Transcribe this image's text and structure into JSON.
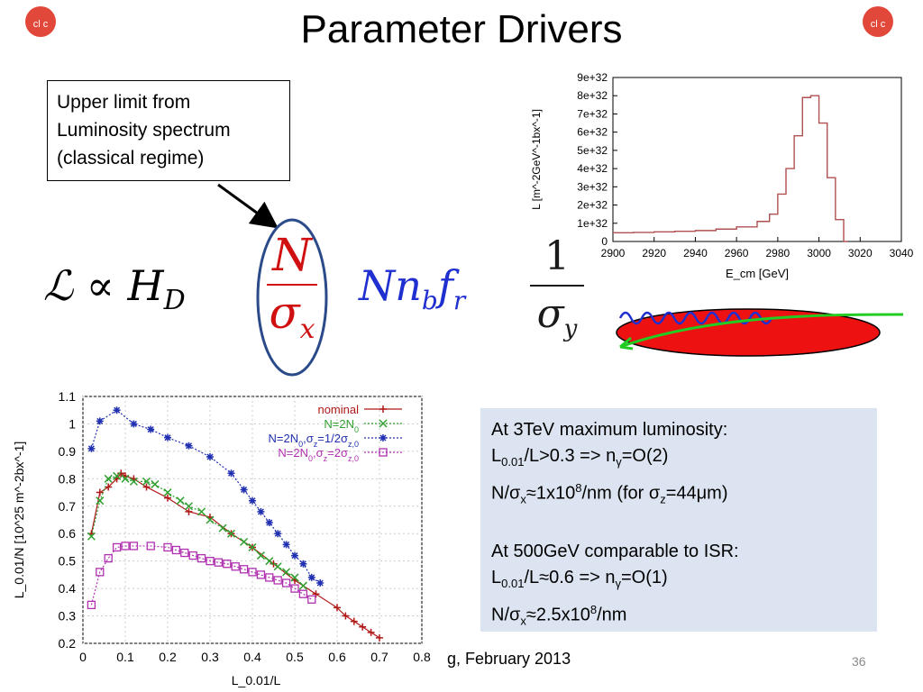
{
  "title": "Parameter Drivers",
  "callout": {
    "lines": [
      "Upper limit from",
      "Luminosity spectrum",
      "(classical regime)"
    ]
  },
  "formula": {
    "lhs": "ℒ ∝ H",
    "lhs_sub": "D",
    "N": "N",
    "sigma": "σ",
    "sigma_sub": "x",
    "mid": "Nn",
    "mid_sub_b": "b",
    "f": "f",
    "f_sub": "r",
    "one": "1",
    "sigma_y": "σ",
    "sigma_y_sub": "y"
  },
  "info": {
    "line1": "At 3TeV maximum luminosity:",
    "line2_a": "L",
    "line2_sub": "0.01",
    "line2_b": "/L>0.3 => n",
    "line2_sub2": "γ",
    "line2_c": "=O(2)",
    "line3_a": "N/σ",
    "line3_sub": "x",
    "line3_b": "≈1x10",
    "line3_sup": "8",
    "line3_c": "/nm (for σ",
    "line3_sub2": "z",
    "line3_d": "=44μm)",
    "line4": "At 500GeV comparable to ISR:",
    "line5_a": "L",
    "line5_sub": "0.01",
    "line5_b": "/L≈0.6 => n",
    "line5_sub2": "γ",
    "line5_c": "=O(1)",
    "line6_a": "N/σ",
    "line6_sub": "x",
    "line6_b": "≈2.5x10",
    "line6_sup": "8",
    "line6_c": "/nm"
  },
  "footer": "g, February 2013",
  "page_number": "36",
  "logo_text": "cl c",
  "chart_data": [
    {
      "type": "line",
      "xlabel": "E_cm [GeV]",
      "ylabel": "L [m^-2GeV^-1bx^-1]",
      "x_ticks": [
        "2900",
        "2920",
        "2940",
        "2960",
        "2980",
        "3000",
        "3020",
        "3040"
      ],
      "y_ticks": [
        "0",
        "1e+32",
        "2e+32",
        "3e+32",
        "4e+32",
        "5e+32",
        "6e+32",
        "7e+32",
        "8e+32",
        "9e+32"
      ],
      "xlim": [
        2900,
        3040
      ],
      "ylim": [
        0,
        9e+32
      ],
      "style": "step",
      "color": "#b05050",
      "x": [
        2900,
        2910,
        2920,
        2930,
        2940,
        2950,
        2960,
        2970,
        2976,
        2980,
        2984,
        2988,
        2992,
        2996,
        3000,
        3004,
        3008,
        3012,
        3014
      ],
      "y": [
        4.8e+31,
        5e+31,
        5.3e+31,
        5.6e+31,
        6e+31,
        6.8e+31,
        8e+31,
        1.1e+32,
        1.5e+32,
        2.6e+32,
        4e+32,
        5.8e+32,
        7.9e+32,
        8e+32,
        6.5e+32,
        3.5e+32,
        1.2e+32,
        0,
        0
      ]
    },
    {
      "type": "line",
      "xlabel": "L_0.01/L",
      "ylabel": "L_0.01/N [10^25 m^-2bx^-1]",
      "x_ticks": [
        "0",
        "0.1",
        "0.2",
        "0.3",
        "0.4",
        "0.5",
        "0.6",
        "0.7",
        "0.8"
      ],
      "y_ticks": [
        "0.2",
        "0.3",
        "0.4",
        "0.5",
        "0.6",
        "0.7",
        "0.8",
        "0.9",
        "1",
        "1.1"
      ],
      "xlim": [
        0,
        0.8
      ],
      "ylim": [
        0.2,
        1.1
      ],
      "legend_position": "top-right",
      "series": [
        {
          "name": "nominal",
          "label": "nominal",
          "color": "#b01818",
          "marker": "plus",
          "x": [
            0.02,
            0.04,
            0.06,
            0.08,
            0.09,
            0.1,
            0.12,
            0.15,
            0.2,
            0.25,
            0.3,
            0.35,
            0.4,
            0.45,
            0.5,
            0.55,
            0.6,
            0.62,
            0.64,
            0.66,
            0.68,
            0.7
          ],
          "y": [
            0.6,
            0.75,
            0.77,
            0.8,
            0.82,
            0.81,
            0.8,
            0.77,
            0.73,
            0.68,
            0.66,
            0.6,
            0.55,
            0.49,
            0.43,
            0.38,
            0.33,
            0.3,
            0.28,
            0.26,
            0.24,
            0.22
          ]
        },
        {
          "name": "N=2N0",
          "label": "N=2N",
          "label_sub": "0",
          "color": "#30a030",
          "marker": "x",
          "x": [
            0.02,
            0.04,
            0.06,
            0.08,
            0.1,
            0.12,
            0.15,
            0.17,
            0.2,
            0.23,
            0.25,
            0.28,
            0.3,
            0.33,
            0.35,
            0.38,
            0.4,
            0.42,
            0.44,
            0.46,
            0.48,
            0.5,
            0.52
          ],
          "y": [
            0.59,
            0.72,
            0.8,
            0.81,
            0.8,
            0.79,
            0.79,
            0.78,
            0.75,
            0.72,
            0.7,
            0.68,
            0.65,
            0.62,
            0.6,
            0.57,
            0.55,
            0.52,
            0.5,
            0.48,
            0.46,
            0.44,
            0.41
          ]
        },
        {
          "name": "N=2N0,σz=1/2σz,0",
          "label": "N=2N",
          "label_sub": "0",
          "label_mid": ",σ",
          "label_sub2": "z",
          "label_end": "=1/2σ",
          "label_sub3": "z,0",
          "color": "#2030b0",
          "marker": "star",
          "x": [
            0.02,
            0.04,
            0.08,
            0.12,
            0.16,
            0.2,
            0.25,
            0.3,
            0.35,
            0.38,
            0.4,
            0.42,
            0.44,
            0.46,
            0.48,
            0.5,
            0.52,
            0.54,
            0.56
          ],
          "y": [
            0.91,
            1.01,
            1.05,
            1.0,
            0.98,
            0.95,
            0.92,
            0.88,
            0.82,
            0.76,
            0.72,
            0.68,
            0.64,
            0.6,
            0.56,
            0.52,
            0.49,
            0.44,
            0.42
          ]
        },
        {
          "name": "N=2N0,σz=2σz,0",
          "label": "N=2N",
          "label_sub": "0",
          "label_mid": ",σ",
          "label_sub2": "z",
          "label_end": "=2σ",
          "label_sub3": "z,0",
          "color": "#b030b0",
          "marker": "square",
          "x": [
            0.02,
            0.04,
            0.06,
            0.08,
            0.1,
            0.12,
            0.16,
            0.2,
            0.22,
            0.24,
            0.26,
            0.28,
            0.3,
            0.32,
            0.34,
            0.36,
            0.38,
            0.4,
            0.42,
            0.44,
            0.46,
            0.48,
            0.5,
            0.52,
            0.54
          ],
          "y": [
            0.34,
            0.46,
            0.51,
            0.55,
            0.555,
            0.555,
            0.555,
            0.55,
            0.54,
            0.53,
            0.52,
            0.51,
            0.5,
            0.495,
            0.49,
            0.48,
            0.47,
            0.46,
            0.45,
            0.44,
            0.43,
            0.42,
            0.4,
            0.38,
            0.36
          ]
        }
      ]
    }
  ]
}
